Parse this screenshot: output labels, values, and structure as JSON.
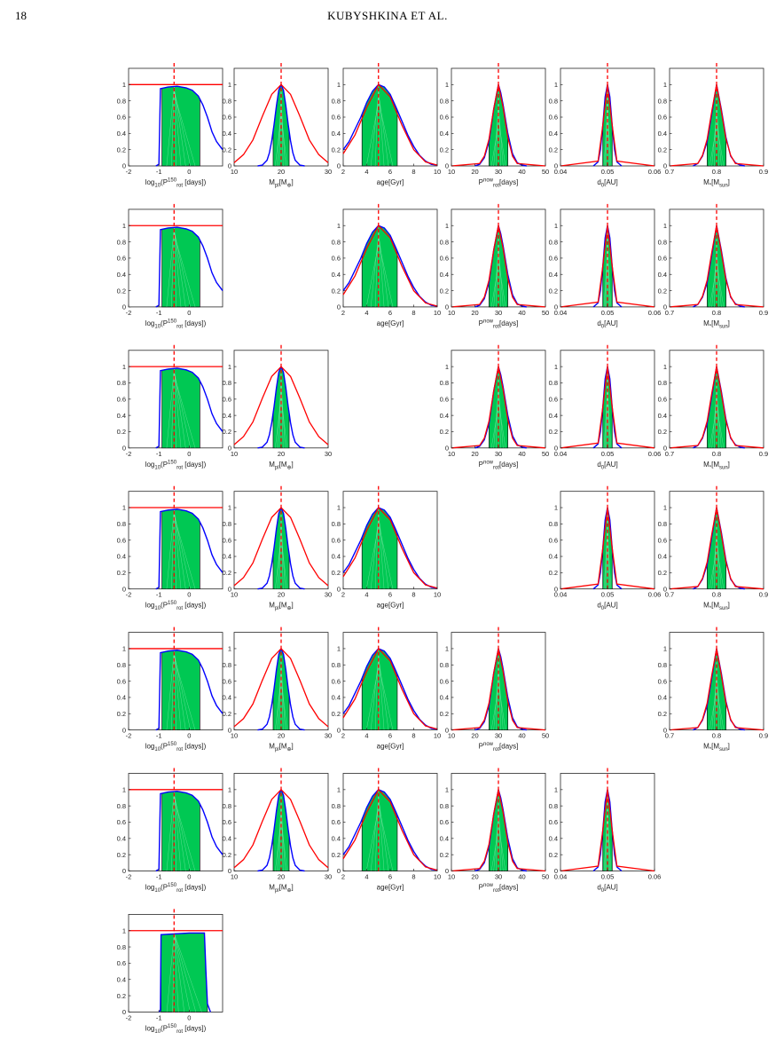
{
  "header": {
    "page": "18",
    "running_title": "KUBYSHKINA ET AL."
  },
  "figure": {
    "ylim": [
      0,
      1.2
    ],
    "yticks": [
      0,
      0.2,
      0.4,
      0.6,
      0.8,
      1
    ],
    "fill_color": "#00c853",
    "posterior_color": "#0000ff",
    "prior_color": "#ff0000",
    "parameters": [
      {
        "xlabel": [
          {
            "text": "log"
          },
          {
            "text": "10",
            "shift": "sub"
          },
          {
            "text": "(P"
          },
          {
            "text": "150",
            "shift": "sup"
          },
          {
            "text": "rot",
            "shift": "sub"
          },
          {
            "text": " [days])"
          }
        ],
        "xlim": [
          -2,
          1.1
        ],
        "xticks": [
          -2,
          -1,
          0
        ],
        "true_value": -0.5,
        "interval": [
          -0.9,
          0.35
        ],
        "posterior": {
          "x": [
            -1.1,
            -1.0,
            -0.95,
            -0.7,
            -0.4,
            -0.1,
            0.1,
            0.3,
            0.45,
            0.6,
            0.75,
            0.9,
            1.1
          ],
          "values": [
            0,
            0.02,
            0.95,
            0.97,
            0.98,
            0.96,
            0.93,
            0.86,
            0.75,
            0.6,
            0.42,
            0.3,
            0.2
          ]
        },
        "prior": {
          "x": [
            -2,
            1.1
          ],
          "values": [
            1,
            1
          ]
        }
      },
      {
        "xlabel": [
          {
            "text": "M"
          },
          {
            "text": "pl",
            "shift": "sub"
          },
          {
            "text": "[M"
          },
          {
            "text": "⊕",
            "shift": "sub"
          },
          {
            "text": "]"
          }
        ],
        "xlim": [
          10,
          30
        ],
        "xticks": [
          10,
          20,
          30
        ],
        "true_value": 20,
        "interval": [
          18.3,
          21.7
        ],
        "posterior": {
          "x": [
            15,
            16,
            17,
            17.5,
            18,
            18.5,
            19,
            19.5,
            20,
            20.5,
            21,
            21.5,
            22,
            22.5,
            23,
            24,
            25
          ],
          "values": [
            0,
            0.01,
            0.07,
            0.16,
            0.31,
            0.51,
            0.74,
            0.93,
            1,
            0.93,
            0.74,
            0.51,
            0.31,
            0.16,
            0.07,
            0.01,
            0
          ]
        },
        "prior": {
          "x": [
            10,
            12,
            14,
            16,
            18,
            20,
            22,
            24,
            26,
            28,
            30
          ],
          "values": [
            0.04,
            0.14,
            0.32,
            0.61,
            0.88,
            1,
            0.88,
            0.61,
            0.32,
            0.14,
            0.04
          ]
        }
      },
      {
        "xlabel": [
          {
            "text": "age[Gyr]"
          }
        ],
        "xlim": [
          2,
          10
        ],
        "xticks": [
          2,
          4,
          6,
          8,
          10
        ],
        "true_value": 5,
        "interval": [
          3.6,
          6.6
        ],
        "posterior": {
          "x": [
            2,
            2.5,
            3,
            3.5,
            4,
            4.5,
            5,
            5.5,
            6,
            6.5,
            7,
            7.5,
            8,
            8.5,
            9,
            9.5,
            10
          ],
          "values": [
            0.2,
            0.3,
            0.45,
            0.6,
            0.78,
            0.92,
            1,
            0.97,
            0.88,
            0.72,
            0.55,
            0.38,
            0.24,
            0.13,
            0.06,
            0.02,
            0.01
          ]
        },
        "prior": {
          "x": [
            2,
            3,
            4,
            5,
            6,
            7,
            8,
            9,
            10
          ],
          "values": [
            0.15,
            0.38,
            0.72,
            1,
            0.85,
            0.5,
            0.2,
            0.05,
            0.01
          ]
        }
      },
      {
        "xlabel": [
          {
            "text": "P"
          },
          {
            "text": "now",
            "shift": "sup"
          },
          {
            "text": "rot",
            "shift": "sub"
          },
          {
            "text": "[days]"
          }
        ],
        "xlim": [
          10,
          50
        ],
        "xticks": [
          10,
          20,
          30,
          40,
          50
        ],
        "true_value": 30,
        "interval": [
          26,
          34
        ],
        "posterior": {
          "x": [
            20,
            22,
            24,
            26,
            28,
            29,
            30,
            31,
            32,
            34,
            36,
            38,
            40,
            42
          ],
          "values": [
            0,
            0.02,
            0.1,
            0.3,
            0.7,
            0.85,
            1,
            0.9,
            0.75,
            0.4,
            0.15,
            0.04,
            0.01,
            0
          ]
        },
        "prior": {
          "x": [
            10,
            22,
            24,
            26,
            28,
            30,
            32,
            34,
            36,
            38,
            50
          ],
          "values": [
            0,
            0.03,
            0.12,
            0.33,
            0.7,
            1,
            0.72,
            0.35,
            0.12,
            0.03,
            0
          ]
        }
      },
      {
        "xlabel": [
          {
            "text": "d"
          },
          {
            "text": "0",
            "shift": "sub"
          },
          {
            "text": "[AU]"
          }
        ],
        "xlim": [
          0.04,
          0.06
        ],
        "xticks": [
          0.04,
          0.05,
          0.06
        ],
        "true_value": 0.05,
        "interval": [
          0.049,
          0.051
        ],
        "posterior": {
          "x": [
            0.047,
            0.048,
            0.0485,
            0.049,
            0.0495,
            0.05,
            0.0505,
            0.051,
            0.0515,
            0.052,
            0.053
          ],
          "values": [
            0,
            0.05,
            0.2,
            0.5,
            0.85,
            1,
            0.85,
            0.5,
            0.2,
            0.05,
            0
          ]
        },
        "prior": {
          "x": [
            0.04,
            0.048,
            0.049,
            0.05,
            0.051,
            0.052,
            0.06
          ],
          "values": [
            0,
            0.06,
            0.5,
            1,
            0.5,
            0.06,
            0
          ]
        }
      },
      {
        "xlabel": [
          {
            "text": "M"
          },
          {
            "text": "*",
            "shift": "sub"
          },
          {
            "text": "[M"
          },
          {
            "text": "sun",
            "shift": "sub"
          },
          {
            "text": "]"
          }
        ],
        "xlim": [
          0.7,
          0.9
        ],
        "xticks": [
          0.7,
          0.8,
          0.9
        ],
        "true_value": 0.8,
        "interval": [
          0.78,
          0.82
        ],
        "posterior": {
          "x": [
            0.75,
            0.76,
            0.77,
            0.78,
            0.79,
            0.8,
            0.81,
            0.82,
            0.83,
            0.84,
            0.85,
            0.86
          ],
          "values": [
            0,
            0.03,
            0.12,
            0.3,
            0.65,
            1,
            0.7,
            0.35,
            0.12,
            0.04,
            0.01,
            0
          ]
        },
        "prior": {
          "x": [
            0.7,
            0.76,
            0.77,
            0.78,
            0.79,
            0.8,
            0.81,
            0.82,
            0.83,
            0.84,
            0.9
          ],
          "values": [
            0,
            0.03,
            0.13,
            0.33,
            0.68,
            1,
            0.68,
            0.33,
            0.13,
            0.03,
            0
          ]
        }
      },
      {
        "xlabel": [
          {
            "text": "log"
          },
          {
            "text": "10",
            "shift": "sub"
          },
          {
            "text": "(P"
          },
          {
            "text": "150",
            "shift": "sup"
          },
          {
            "text": "rot",
            "shift": "sub"
          },
          {
            "text": " [days])"
          }
        ],
        "xlim": [
          -2,
          1.1
        ],
        "xticks": [
          -2,
          -1,
          0
        ],
        "true_value": -0.5,
        "interval": [
          -0.93,
          0.6
        ],
        "posterior": {
          "x": [
            -1.0,
            -0.95,
            -0.93,
            -0.5,
            0,
            0.5,
            0.55,
            0.6,
            0.7
          ],
          "values": [
            0,
            0.02,
            0.95,
            0.96,
            0.97,
            0.97,
            0.5,
            0.1,
            0
          ]
        },
        "prior": {
          "x": [
            -2,
            1.1
          ],
          "values": [
            1,
            1
          ]
        }
      }
    ],
    "rows": [
      [
        0,
        1,
        2,
        3,
        4,
        5
      ],
      [
        0,
        2,
        3,
        4,
        5
      ],
      [
        0,
        1,
        3,
        4,
        5
      ],
      [
        0,
        1,
        2,
        4,
        5
      ],
      [
        0,
        1,
        2,
        3,
        5
      ],
      [
        0,
        1,
        2,
        3,
        4
      ],
      [
        6
      ]
    ]
  }
}
